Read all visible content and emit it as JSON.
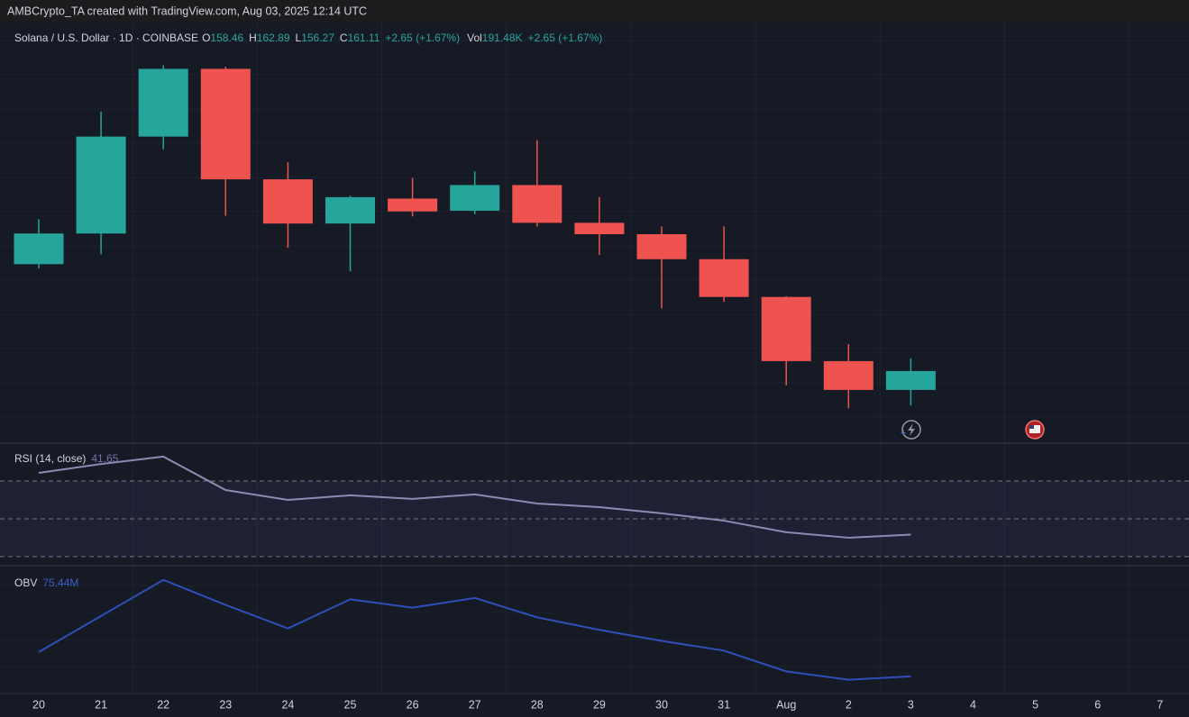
{
  "header": {
    "text": "AMBCrypto_TA created with TradingView.com, Aug 03, 2025 12:14 UTC"
  },
  "chart_data": [
    {
      "type": "candlestick",
      "title": "Solana / U.S. Dollar · 1D · COINBASE",
      "legend": {
        "open_label": "O",
        "high_label": "H",
        "low_label": "L",
        "close_label": "C",
        "change": "+2.65 (+1.67%)",
        "volume_label": "Vol",
        "volume": "191.48K",
        "volume_change": "+2.65 (+1.67%)"
      },
      "categories": [
        "20",
        "21",
        "22",
        "23",
        "24",
        "25",
        "26",
        "27",
        "28",
        "29",
        "30",
        "31",
        "Aug",
        "2",
        "3",
        "4",
        "5",
        "6",
        "7"
      ],
      "open": [
        176.1,
        180.4,
        194.0,
        203.5,
        188.0,
        181.8,
        185.3,
        183.6,
        187.2,
        181.9,
        180.3,
        176.8,
        171.5,
        162.5,
        158.46,
        null,
        null,
        null,
        null
      ],
      "high": [
        182.4,
        197.5,
        204.0,
        203.8,
        190.4,
        185.7,
        188.2,
        189.1,
        193.5,
        185.5,
        181.4,
        181.4,
        171.6,
        164.9,
        162.89,
        null,
        null,
        null,
        null
      ],
      "low": [
        175.5,
        177.5,
        192.2,
        182.9,
        178.4,
        175.1,
        182.8,
        183.1,
        181.4,
        177.4,
        169.9,
        170.8,
        159.1,
        155.9,
        156.27,
        null,
        null,
        null,
        null
      ],
      "close": [
        180.4,
        194.0,
        203.5,
        188.0,
        181.8,
        185.5,
        183.5,
        187.2,
        181.9,
        180.3,
        176.8,
        171.5,
        162.5,
        158.46,
        161.11,
        null,
        null,
        null,
        null
      ],
      "up_color": "#26a69a",
      "down_color": "#ef5350",
      "ylim": [
        152,
        210
      ],
      "grid": true
    },
    {
      "type": "line",
      "title": "RSI (14, close)",
      "values": [
        74.3,
        79.0,
        82.9,
        65.2,
        60.0,
        62.4,
        60.5,
        62.9,
        58.1,
        56.2,
        52.9,
        49.0,
        42.9,
        40.0,
        41.65,
        null,
        null,
        null,
        null
      ],
      "levels": [
        70,
        50,
        30
      ],
      "color": "#8e89b3",
      "band_color": "#7e57c2",
      "ylim": [
        25.2,
        88.1
      ]
    },
    {
      "type": "line",
      "title": "OBV",
      "values": [
        77.2,
        79.8,
        82.4,
        80.6,
        78.9,
        81.0,
        80.4,
        81.1,
        79.7,
        78.8,
        78.0,
        77.3,
        75.8,
        75.2,
        75.44,
        null,
        null,
        null,
        null
      ],
      "value_labels": [
        null,
        null,
        null,
        null,
        null,
        null,
        null,
        null,
        null,
        null,
        null,
        null,
        null,
        null,
        "75.44M",
        null,
        null,
        null,
        null
      ],
      "color": "#2f4fb8",
      "ylim": [
        74.2,
        83.3
      ]
    }
  ]
}
